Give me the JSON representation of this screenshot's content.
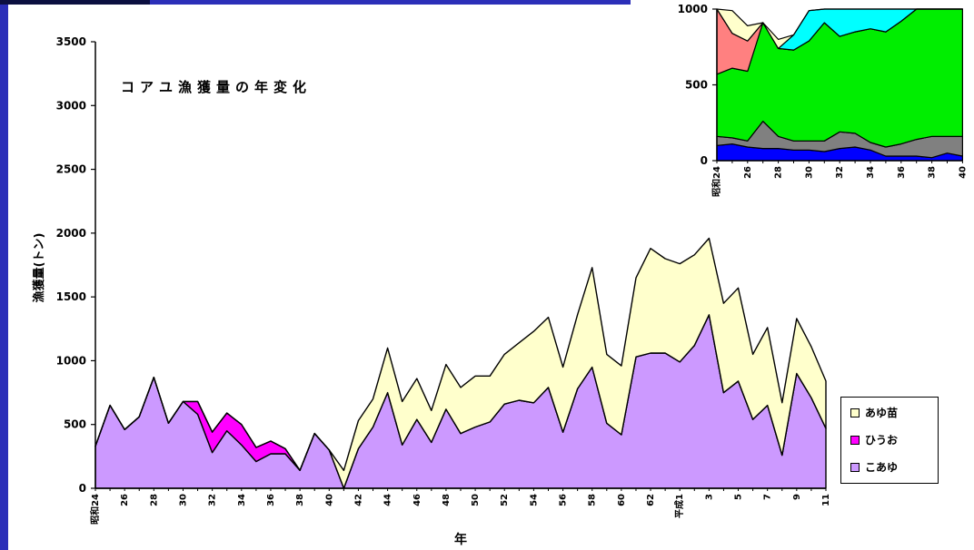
{
  "chart_data": [
    {
      "type": "area",
      "stacked": true,
      "title": "コアユ漁獲量の年変化",
      "ylabel": "漁獲量(トン)",
      "xlabel": "年",
      "ylim": [
        0,
        3500
      ],
      "yticks": [
        "3500",
        "3000",
        "2500",
        "2000",
        "1500",
        "1000",
        "500",
        "0"
      ],
      "xtick_labels": [
        "昭和24",
        "26",
        "28",
        "30",
        "32",
        "34",
        "36",
        "38",
        "40",
        "42",
        "44",
        "46",
        "48",
        "50",
        "52",
        "54",
        "56",
        "58",
        "60",
        "62",
        "平成1",
        "3",
        "5",
        "7",
        "9",
        "11"
      ],
      "grid": false,
      "legend_position": "bottom-right",
      "x": [
        "昭和24",
        "25",
        "26",
        "27",
        "28",
        "29",
        "30",
        "31",
        "32",
        "33",
        "34",
        "35",
        "36",
        "37",
        "38",
        "39",
        "40",
        "41",
        "42",
        "43",
        "44",
        "45",
        "46",
        "47",
        "48",
        "49",
        "50",
        "51",
        "52",
        "53",
        "54",
        "55",
        "56",
        "57",
        "58",
        "59",
        "60",
        "61",
        "62",
        "63",
        "平成1",
        "2",
        "3",
        "4",
        "5",
        "6",
        "7",
        "8",
        "9",
        "10",
        "11"
      ],
      "series": [
        {
          "name": "こあゆ",
          "color": "#cc99ff",
          "values": [
            330,
            650,
            460,
            560,
            870,
            510,
            680,
            580,
            280,
            450,
            340,
            210,
            270,
            270,
            140,
            430,
            300,
            0,
            310,
            480,
            750,
            340,
            540,
            360,
            620,
            430,
            480,
            520,
            660,
            690,
            670,
            790,
            440,
            780,
            950,
            510,
            420,
            1030,
            1060,
            1060,
            990,
            1120,
            1360,
            750,
            840,
            540,
            650,
            260,
            900,
            710,
            470
          ]
        },
        {
          "name": "ひうお",
          "color": "#ff00ff",
          "values": [
            0,
            0,
            0,
            0,
            0,
            0,
            0,
            100,
            160,
            140,
            160,
            110,
            100,
            40,
            0,
            0,
            0,
            0,
            0,
            0,
            0,
            0,
            0,
            0,
            0,
            0,
            0,
            0,
            0,
            0,
            0,
            0,
            0,
            0,
            0,
            0,
            0,
            0,
            0,
            0,
            0,
            0,
            0,
            0,
            0,
            0,
            0,
            0,
            0,
            0,
            0
          ]
        },
        {
          "name": "あゆ苗",
          "color": "#ffffcc",
          "values": [
            0,
            0,
            0,
            0,
            0,
            0,
            0,
            0,
            0,
            0,
            0,
            0,
            0,
            0,
            0,
            0,
            0,
            140,
            220,
            220,
            350,
            340,
            320,
            250,
            350,
            360,
            400,
            360,
            390,
            450,
            560,
            550,
            510,
            580,
            780,
            540,
            540,
            620,
            820,
            740,
            770,
            710,
            600,
            700,
            730,
            510,
            610,
            410,
            430,
            400,
            370
          ]
        }
      ]
    },
    {
      "type": "area",
      "stacked": true,
      "ylim": [
        0,
        1000
      ],
      "yticks": [
        "1000",
        "500",
        "0"
      ],
      "xtick_labels": [
        "昭和24",
        "26",
        "28",
        "30",
        "32",
        "34",
        "36",
        "38",
        "40"
      ],
      "series": [
        {
          "color": "#0000ff",
          "values": [
            100,
            110,
            90,
            80,
            80,
            70,
            70,
            60,
            80,
            90,
            70,
            30,
            30,
            30,
            20,
            50,
            30
          ]
        },
        {
          "color": "#808080",
          "values": [
            60,
            40,
            40,
            180,
            80,
            60,
            60,
            70,
            110,
            90,
            50,
            60,
            80,
            110,
            140,
            110,
            130
          ]
        },
        {
          "color": "#00ee00",
          "values": [
            410,
            460,
            460,
            650,
            580,
            600,
            660,
            780,
            630,
            670,
            750,
            760,
            810,
            860,
            1000,
            1000,
            1000
          ]
        },
        {
          "color": "#ff8080",
          "values": [
            430,
            230,
            200,
            0,
            0,
            0,
            0,
            0,
            0,
            0,
            0,
            0,
            0,
            0,
            0,
            0,
            0
          ]
        },
        {
          "color": "#00ffff",
          "values": [
            0,
            0,
            0,
            0,
            0,
            100,
            200,
            100,
            180,
            210,
            180,
            250,
            250,
            0,
            0,
            0,
            0
          ]
        },
        {
          "color": "#ffffcc",
          "values": [
            200,
            150,
            100,
            0,
            60,
            0,
            0,
            0,
            0,
            0,
            0,
            0,
            0,
            0,
            0,
            0,
            0
          ]
        }
      ]
    }
  ]
}
